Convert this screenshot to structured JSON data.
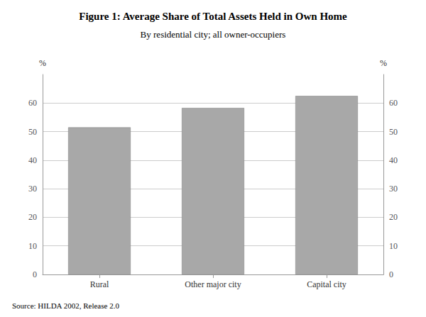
{
  "chart_data": {
    "type": "bar",
    "title": "Figure 1: Average Share of Total Assets Held in Own Home",
    "subtitle": "By residential city; all owner-occupiers",
    "categories": [
      "Rural",
      "Other major city",
      "Capital city"
    ],
    "values": [
      51.5,
      58.3,
      62.5
    ],
    "color": "#a8a8a8",
    "ylim": [
      0,
      70
    ],
    "yticks": [
      0,
      10,
      20,
      30,
      40,
      50,
      60
    ],
    "ylabel": "%",
    "y2lim": [
      0,
      70
    ],
    "y2ticks": [
      0,
      10,
      20,
      30,
      40,
      50,
      60
    ],
    "y2label": "%",
    "source": "Source: HILDA 2002, Release 2.0",
    "grid": true
  }
}
